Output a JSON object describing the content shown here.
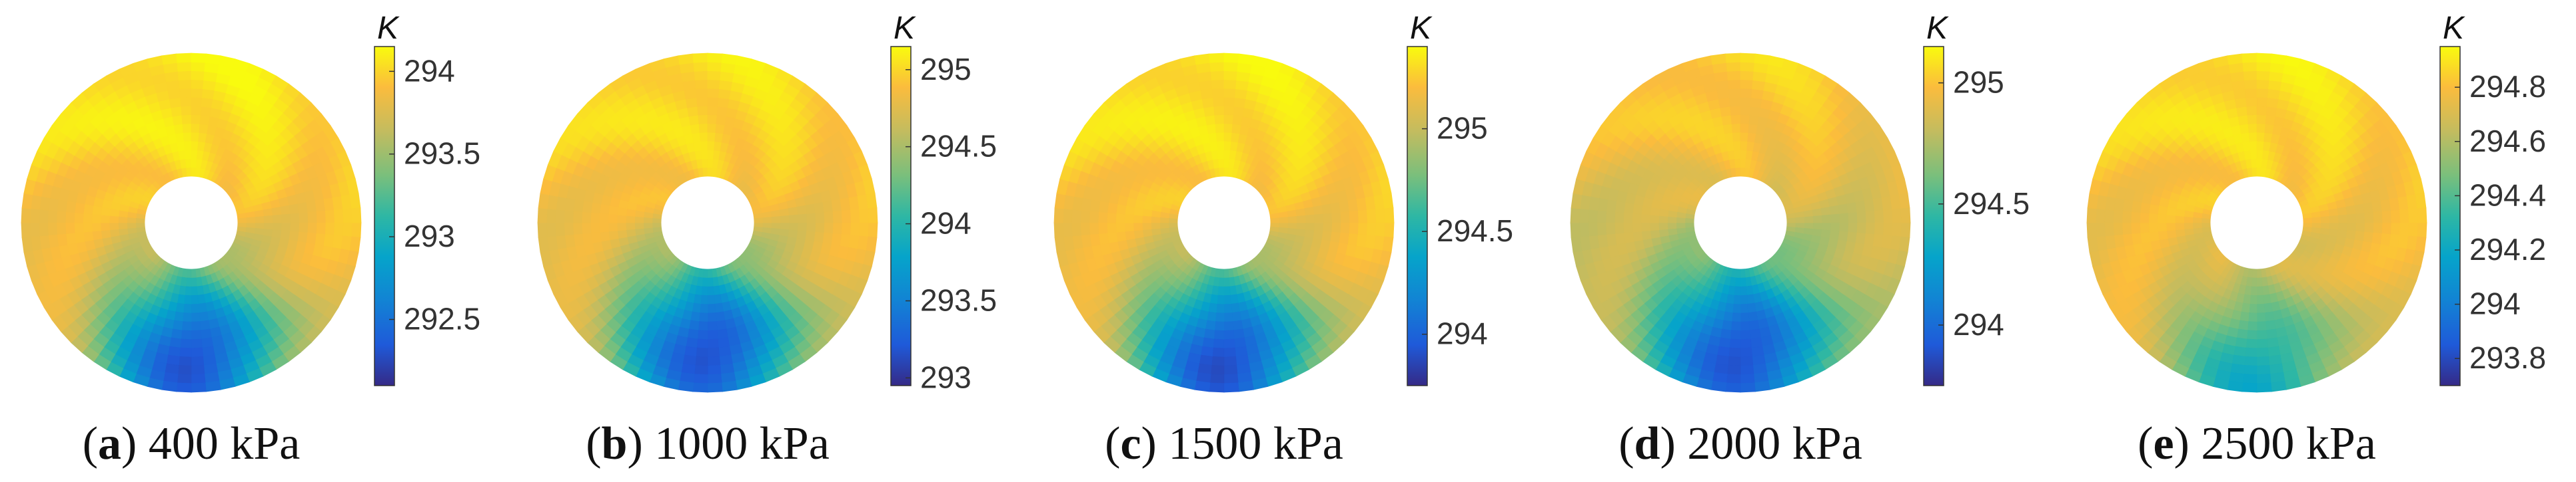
{
  "chart_data": [
    {
      "type": "heatmap",
      "label_letter": "a",
      "label_text": "400 kPa",
      "colorbar_unit": "K",
      "clim": [
        292.1,
        294.15
      ],
      "ticks": [
        292.5,
        293,
        293.5,
        294
      ],
      "tick_labels": [
        "292.5",
        "293",
        "293.5",
        "294"
      ],
      "field": {
        "base": 293.9,
        "top_max": 294.1,
        "cold_min": 292.25,
        "cold_center_r": 0.85
      }
    },
    {
      "type": "heatmap",
      "label_letter": "b",
      "label_text": "1000 kPa",
      "colorbar_unit": "K",
      "clim": [
        292.95,
        295.15
      ],
      "ticks": [
        293,
        293.5,
        294,
        294.5,
        295
      ],
      "tick_labels": [
        "293",
        "293.5",
        "294",
        "294.5",
        "295"
      ],
      "field": {
        "base": 294.85,
        "top_max": 295.05,
        "cold_min": 293.1,
        "cold_center_r": 0.78
      }
    },
    {
      "type": "heatmap",
      "label_letter": "c",
      "label_text": "1500 kPa",
      "colorbar_unit": "K",
      "clim": [
        293.75,
        295.4
      ],
      "ticks": [
        294,
        294.5,
        295
      ],
      "tick_labels": [
        "294",
        "294.5",
        "295"
      ],
      "field": {
        "base": 295.2,
        "top_max": 295.35,
        "cold_min": 293.85,
        "cold_center_r": 0.85
      }
    },
    {
      "type": "heatmap",
      "label_letter": "d",
      "label_text": "2000 kPa",
      "colorbar_unit": "K",
      "clim": [
        293.75,
        295.15
      ],
      "ticks": [
        294,
        294.5,
        295
      ],
      "tick_labels": [
        "294",
        "294.5",
        "295"
      ],
      "field": {
        "base": 294.85,
        "top_max": 295.05,
        "cold_min": 293.85,
        "cold_center_r": 0.8
      }
    },
    {
      "type": "heatmap",
      "label_letter": "e",
      "label_text": "2500 kPa",
      "colorbar_unit": "K",
      "clim": [
        293.7,
        294.95
      ],
      "ticks": [
        293.8,
        294,
        294.2,
        294.4,
        294.6,
        294.8
      ],
      "tick_labels": [
        "293.8",
        "294",
        "294.2",
        "294.4",
        "294.6",
        "294.8"
      ],
      "field": {
        "base": 294.78,
        "top_max": 294.9,
        "cold_min": 294.2,
        "cold_center_r": 1.0
      }
    }
  ]
}
